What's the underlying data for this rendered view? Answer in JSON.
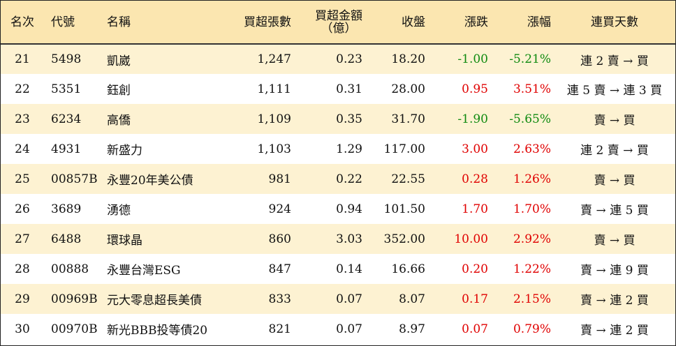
{
  "headers": {
    "rank": "名次",
    "code": "代號",
    "name": "名稱",
    "net_buy_lots": "買超張數",
    "net_buy_amount_line1": "買超金額",
    "net_buy_amount_line2": "（億）",
    "close": "收盤",
    "change": "漲跌",
    "change_pct": "漲幅",
    "buy_streak": "連買天數"
  },
  "colors": {
    "header_bg": "#fbe6b0",
    "row_alt_bg": "#fdf2d2",
    "up": "#e00000",
    "down": "#108a10"
  },
  "rows": [
    {
      "rank": "21",
      "code": "5498",
      "name": "凱崴",
      "lots": "1,247",
      "amount": "0.23",
      "close": "18.20",
      "change": "-1.00",
      "pct": "-5.21%",
      "streak": "連 2 賣 → 買",
      "dir": "down"
    },
    {
      "rank": "22",
      "code": "5351",
      "name": "鈺創",
      "lots": "1,111",
      "amount": "0.31",
      "close": "28.00",
      "change": "0.95",
      "pct": "3.51%",
      "streak": "連 5 賣 → 連 3 買",
      "dir": "up"
    },
    {
      "rank": "23",
      "code": "6234",
      "name": "高僑",
      "lots": "1,109",
      "amount": "0.35",
      "close": "31.70",
      "change": "-1.90",
      "pct": "-5.65%",
      "streak": "賣 → 買",
      "dir": "down"
    },
    {
      "rank": "24",
      "code": "4931",
      "name": "新盛力",
      "lots": "1,103",
      "amount": "1.29",
      "close": "117.00",
      "change": "3.00",
      "pct": "2.63%",
      "streak": "連 2 賣 → 買",
      "dir": "up"
    },
    {
      "rank": "25",
      "code": "00857B",
      "name": "永豐20年美公債",
      "lots": "981",
      "amount": "0.22",
      "close": "22.55",
      "change": "0.28",
      "pct": "1.26%",
      "streak": "賣 → 買",
      "dir": "up"
    },
    {
      "rank": "26",
      "code": "3689",
      "name": "湧德",
      "lots": "924",
      "amount": "0.94",
      "close": "101.50",
      "change": "1.70",
      "pct": "1.70%",
      "streak": "賣 → 連 5 買",
      "dir": "up"
    },
    {
      "rank": "27",
      "code": "6488",
      "name": "環球晶",
      "lots": "860",
      "amount": "3.03",
      "close": "352.00",
      "change": "10.00",
      "pct": "2.92%",
      "streak": "賣 → 買",
      "dir": "up"
    },
    {
      "rank": "28",
      "code": "00888",
      "name": "永豐台灣ESG",
      "lots": "847",
      "amount": "0.14",
      "close": "16.66",
      "change": "0.20",
      "pct": "1.22%",
      "streak": "賣 → 連 9 買",
      "dir": "up"
    },
    {
      "rank": "29",
      "code": "00969B",
      "name": "元大零息超長美債",
      "lots": "833",
      "amount": "0.07",
      "close": "8.07",
      "change": "0.17",
      "pct": "2.15%",
      "streak": "賣 → 連 2 買",
      "dir": "up"
    },
    {
      "rank": "30",
      "code": "00970B",
      "name": "新光BBB投等債20",
      "lots": "821",
      "amount": "0.07",
      "close": "8.97",
      "change": "0.07",
      "pct": "0.79%",
      "streak": "賣 → 連 2 買",
      "dir": "up"
    }
  ]
}
